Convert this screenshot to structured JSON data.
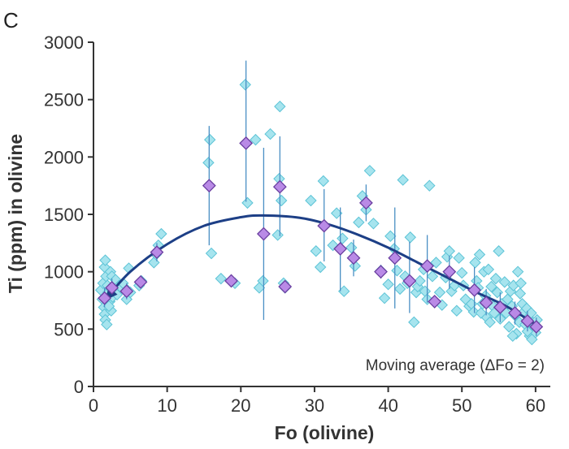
{
  "panel_label": "C",
  "chart_data": {
    "type": "scatter",
    "title": "",
    "xlabel": "Fo (olivine)",
    "ylabel": "Ti (ppm) in olivine",
    "xlim": [
      0,
      62
    ],
    "ylim": [
      0,
      3000
    ],
    "xticks": [
      0,
      10,
      20,
      30,
      40,
      50,
      60
    ],
    "yticks": [
      0,
      500,
      1000,
      1500,
      2000,
      2500,
      3000
    ],
    "grid": false,
    "annotation": "Moving average (ΔFo = 2)",
    "colors": {
      "points_fill": "#a6e4ee",
      "points_stroke": "#5cc3d6",
      "avg_fill": "#b98ae6",
      "avg_stroke": "#6a3fa0",
      "errorbar": "#4a8fc4",
      "trend": "#1d3f86",
      "axis": "#333333"
    },
    "series": [
      {
        "kind": "points",
        "points": [
          [
            1.0,
            840
          ],
          [
            1.2,
            760
          ],
          [
            1.4,
            690
          ],
          [
            1.5,
            630
          ],
          [
            1.6,
            580
          ],
          [
            1.8,
            540
          ],
          [
            1.3,
            900
          ],
          [
            1.7,
            960
          ],
          [
            1.5,
            1040
          ],
          [
            1.6,
            1100
          ],
          [
            2.0,
            820
          ],
          [
            2.2,
            740
          ],
          [
            1.9,
            880
          ],
          [
            2.3,
            1000
          ],
          [
            2.5,
            960
          ],
          [
            2.8,
            870
          ],
          [
            3.0,
            930
          ],
          [
            2.4,
            660
          ],
          [
            2.6,
            780
          ],
          [
            2.1,
            700
          ],
          [
            3.2,
            800
          ],
          [
            3.5,
            880
          ],
          [
            3.8,
            860
          ],
          [
            4.0,
            900
          ],
          [
            4.5,
            760
          ],
          [
            4.6,
            840
          ],
          [
            4.8,
            1030
          ],
          [
            5.0,
            820
          ],
          [
            6.2,
            880
          ],
          [
            6.5,
            920
          ],
          [
            8.2,
            1080
          ],
          [
            8.5,
            1150
          ],
          [
            8.8,
            1230
          ],
          [
            9.2,
            1330
          ],
          [
            15.6,
            1950
          ],
          [
            15.8,
            2150
          ],
          [
            16.0,
            1160
          ],
          [
            17.3,
            940
          ],
          [
            18.6,
            920
          ],
          [
            19.2,
            900
          ],
          [
            20.6,
            2630
          ],
          [
            20.9,
            1600
          ],
          [
            22.0,
            2150
          ],
          [
            22.5,
            860
          ],
          [
            23.0,
            920
          ],
          [
            24.0,
            2200
          ],
          [
            25.0,
            1320
          ],
          [
            25.2,
            1810
          ],
          [
            25.5,
            1620
          ],
          [
            25.3,
            2440
          ],
          [
            25.8,
            900
          ],
          [
            26.0,
            860
          ],
          [
            29.5,
            1620
          ],
          [
            30.2,
            1180
          ],
          [
            30.8,
            1040
          ],
          [
            31.2,
            1790
          ],
          [
            32.5,
            1230
          ],
          [
            33.0,
            1510
          ],
          [
            33.8,
            1290
          ],
          [
            34.0,
            830
          ],
          [
            35.0,
            1210
          ],
          [
            35.5,
            1050
          ],
          [
            36.0,
            1430
          ],
          [
            36.5,
            1660
          ],
          [
            37.0,
            1540
          ],
          [
            37.5,
            1880
          ],
          [
            38.0,
            1420
          ],
          [
            39.0,
            1010
          ],
          [
            39.5,
            770
          ],
          [
            40.0,
            890
          ],
          [
            40.3,
            1310
          ],
          [
            40.8,
            1200
          ],
          [
            41.2,
            1010
          ],
          [
            41.6,
            850
          ],
          [
            42.0,
            1800
          ],
          [
            42.3,
            960
          ],
          [
            42.6,
            900
          ],
          [
            43.0,
            1300
          ],
          [
            43.5,
            560
          ],
          [
            43.8,
            820
          ],
          [
            44.0,
            870
          ],
          [
            44.3,
            920
          ],
          [
            44.8,
            1020
          ],
          [
            45.0,
            830
          ],
          [
            45.3,
            760
          ],
          [
            45.6,
            1750
          ],
          [
            46.0,
            960
          ],
          [
            46.5,
            1080
          ],
          [
            47.0,
            820
          ],
          [
            47.3,
            710
          ],
          [
            47.8,
            950
          ],
          [
            48.0,
            1130
          ],
          [
            48.3,
            1180
          ],
          [
            48.6,
            830
          ],
          [
            49.0,
            880
          ],
          [
            49.3,
            660
          ],
          [
            49.6,
            1120
          ],
          [
            50.0,
            990
          ],
          [
            50.2,
            880
          ],
          [
            50.5,
            760
          ],
          [
            51.0,
            700
          ],
          [
            51.3,
            720
          ],
          [
            51.6,
            650
          ],
          [
            51.8,
            1080
          ],
          [
            52.0,
            920
          ],
          [
            52.2,
            860
          ],
          [
            52.4,
            1150
          ],
          [
            52.6,
            640
          ],
          [
            52.8,
            720
          ],
          [
            53.0,
            1000
          ],
          [
            53.2,
            790
          ],
          [
            53.4,
            600
          ],
          [
            53.6,
            1020
          ],
          [
            53.8,
            560
          ],
          [
            54.0,
            870
          ],
          [
            54.2,
            700
          ],
          [
            54.4,
            640
          ],
          [
            54.6,
            940
          ],
          [
            54.8,
            820
          ],
          [
            55.0,
            1180
          ],
          [
            55.2,
            590
          ],
          [
            55.4,
            720
          ],
          [
            55.6,
            680
          ],
          [
            55.8,
            910
          ],
          [
            56.0,
            640
          ],
          [
            56.2,
            760
          ],
          [
            56.4,
            520
          ],
          [
            56.6,
            830
          ],
          [
            56.8,
            700
          ],
          [
            57.0,
            880
          ],
          [
            57.2,
            620
          ],
          [
            57.4,
            460
          ],
          [
            57.6,
            1000
          ],
          [
            57.8,
            560
          ],
          [
            58.0,
            900
          ],
          [
            58.2,
            720
          ],
          [
            58.4,
            650
          ],
          [
            58.6,
            540
          ],
          [
            58.8,
            680
          ],
          [
            59.0,
            600
          ],
          [
            59.2,
            440
          ],
          [
            59.4,
            640
          ],
          [
            59.6,
            560
          ],
          [
            59.8,
            520
          ],
          [
            60.0,
            470
          ],
          [
            60.2,
            580
          ],
          [
            59.5,
            410
          ],
          [
            58.9,
            480
          ],
          [
            57.9,
            810
          ],
          [
            56.9,
            440
          ]
        ]
      },
      {
        "kind": "moving_average",
        "points": [
          [
            1.5,
            770,
            690,
            860
          ],
          [
            2.5,
            860,
            780,
            940
          ],
          [
            4.5,
            830,
            760,
            900
          ],
          [
            6.4,
            910,
            860,
            960
          ],
          [
            8.6,
            1170,
            1090,
            1250
          ],
          [
            15.7,
            1750,
            1230,
            2270
          ],
          [
            18.7,
            920,
            880,
            960
          ],
          [
            20.7,
            2120,
            1610,
            2840
          ],
          [
            23.1,
            1330,
            580,
            2080
          ],
          [
            25.3,
            1740,
            1310,
            2180
          ],
          [
            26.0,
            870,
            840,
            900
          ],
          [
            31.3,
            1400,
            1090,
            1720
          ],
          [
            33.5,
            1200,
            830,
            1560
          ],
          [
            35.3,
            1120,
            960,
            1280
          ],
          [
            37.0,
            1600,
            1440,
            1760
          ],
          [
            39.0,
            1000,
            940,
            1060
          ],
          [
            40.9,
            1120,
            680,
            1560
          ],
          [
            42.9,
            920,
            640,
            1260
          ],
          [
            45.3,
            1050,
            730,
            1320
          ],
          [
            46.3,
            740,
            700,
            780
          ],
          [
            48.3,
            1000,
            850,
            1140
          ],
          [
            51.7,
            840,
            640,
            1040
          ],
          [
            53.3,
            730,
            620,
            850
          ],
          [
            55.2,
            690,
            560,
            820
          ],
          [
            57.2,
            640,
            540,
            740
          ],
          [
            58.9,
            570,
            480,
            660
          ],
          [
            60.1,
            520,
            440,
            600
          ]
        ]
      },
      {
        "kind": "trend",
        "points": [
          [
            1.5,
            750
          ],
          [
            5,
            1000
          ],
          [
            10,
            1240
          ],
          [
            15,
            1400
          ],
          [
            20,
            1475
          ],
          [
            23,
            1490
          ],
          [
            28,
            1470
          ],
          [
            32,
            1410
          ],
          [
            36,
            1320
          ],
          [
            40,
            1210
          ],
          [
            44,
            1080
          ],
          [
            48,
            950
          ],
          [
            52,
            820
          ],
          [
            56,
            700
          ],
          [
            60,
            540
          ]
        ]
      }
    ]
  }
}
